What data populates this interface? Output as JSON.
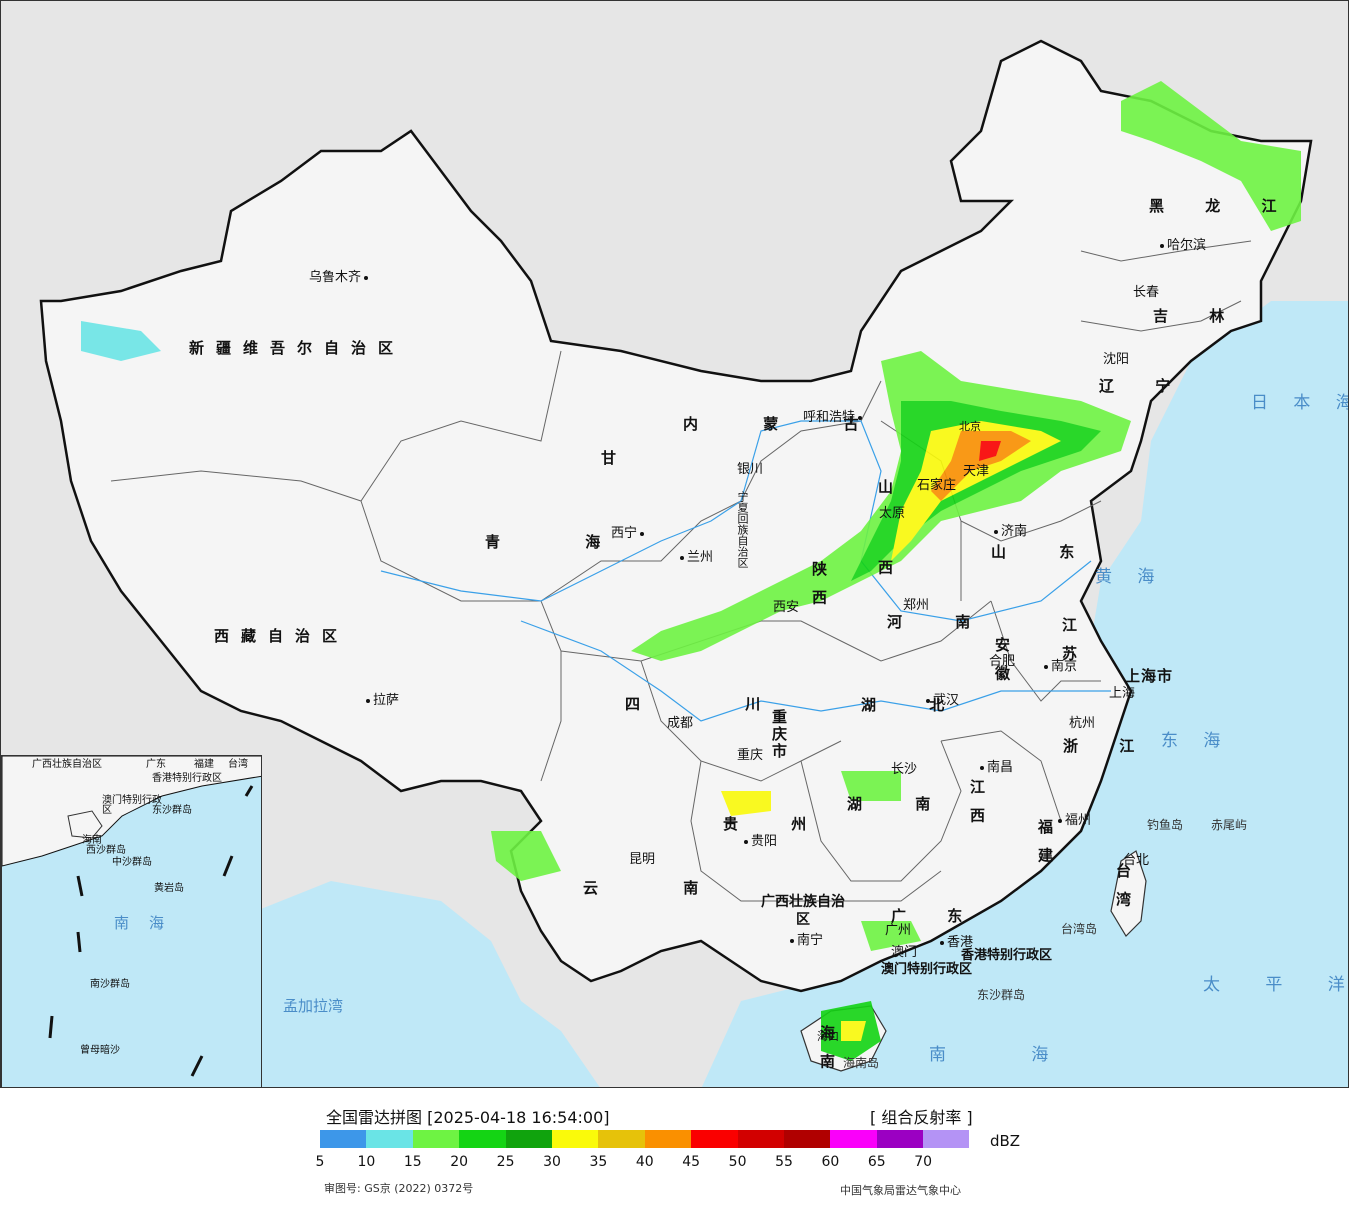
{
  "map": {
    "provinces": [
      {
        "name": "新疆维吾尔自治区",
        "kind": "h"
      },
      {
        "name": "西藏自治区",
        "kind": "h"
      },
      {
        "name": "青 海",
        "kind": "h"
      },
      {
        "name": "甘",
        "kind": "v"
      },
      {
        "name": "内 蒙 古",
        "kind": "h"
      },
      {
        "name": "黑 龙 江",
        "kind": "h"
      },
      {
        "name": "吉 林",
        "kind": "h"
      },
      {
        "name": "辽 宁",
        "kind": "h"
      },
      {
        "name": "四 川",
        "kind": "h"
      },
      {
        "name": "云 南",
        "kind": "h"
      },
      {
        "name": "贵 州",
        "kind": "h"
      },
      {
        "name": "湖 北",
        "kind": "h"
      },
      {
        "name": "湖 南",
        "kind": "h"
      },
      {
        "name": "河 南",
        "kind": "h"
      },
      {
        "name": "山 东",
        "kind": "h"
      },
      {
        "name": "江 苏",
        "kind": "h"
      },
      {
        "name": "安 徽",
        "kind": "h"
      },
      {
        "name": "浙 江",
        "kind": "h"
      },
      {
        "name": "江 西",
        "kind": "h"
      },
      {
        "name": "福 建",
        "kind": "h"
      },
      {
        "name": "广 东",
        "kind": "h"
      },
      {
        "name": "广西壮族自治区",
        "kind": "h"
      },
      {
        "name": "海 南",
        "kind": "h"
      },
      {
        "name": "重庆市",
        "kind": "h"
      },
      {
        "name": "上海市",
        "kind": "h"
      },
      {
        "name": "台 湾",
        "kind": "h"
      },
      {
        "name": "陕 西",
        "kind": "h"
      },
      {
        "name": "山 西",
        "kind": "h"
      },
      {
        "name": "宁夏回族自治区",
        "kind": "v"
      },
      {
        "name": "香港特别行政区",
        "kind": "h"
      },
      {
        "name": "澳门特别行政区",
        "kind": "h"
      }
    ],
    "cities": [
      "乌鲁木齐",
      "拉萨",
      "西宁",
      "兰州",
      "银川",
      "呼和浩特",
      "哈尔滨",
      "长春",
      "沈阳",
      "北京",
      "天津",
      "石家庄",
      "太原",
      "济南",
      "郑州",
      "西安",
      "成都",
      "重庆",
      "武汉",
      "合肥",
      "南京",
      "上海",
      "杭州",
      "南昌",
      "长沙",
      "贵阳",
      "昆明",
      "南宁",
      "广州",
      "澳门",
      "香港",
      "福州",
      "台北",
      "海口"
    ],
    "seas": [
      "日 本 海",
      "黄 海",
      "东 海",
      "南 海",
      "太 平 洋",
      "孟加拉湾"
    ],
    "islands": [
      "钓鱼岛",
      "赤尾屿",
      "台湾岛",
      "海南岛",
      "东沙群岛"
    ],
    "inset_labels": [
      "广西壮族自治区",
      "广东",
      "福建",
      "台湾",
      "香港特别行政区",
      "澳门特别行政区",
      "海南",
      "东沙群岛",
      "西沙群岛",
      "中沙群岛",
      "黄岩岛",
      "南海",
      "南沙群岛",
      "曾母暗沙"
    ]
  },
  "legend": {
    "title": "全国雷达拼图 [2025-04-18 16:54:00]",
    "product": "[ 组合反射率 ]",
    "unit": "dBZ",
    "review_no": "审图号: GS京 (2022) 0372号",
    "source": "中国气象局雷达气象中心",
    "ticks": [
      "5",
      "10",
      "15",
      "20",
      "25",
      "30",
      "35",
      "40",
      "45",
      "50",
      "55",
      "60",
      "65",
      "70"
    ],
    "colors": [
      "#3d97e9",
      "#6ae4e6",
      "#6ef343",
      "#14d414",
      "#10a30d",
      "#fafa0a",
      "#e6c20a",
      "#fa9000",
      "#fa0000",
      "#d20000",
      "#b00000",
      "#fa00fa",
      "#9b00c2",
      "#b493f5"
    ]
  }
}
